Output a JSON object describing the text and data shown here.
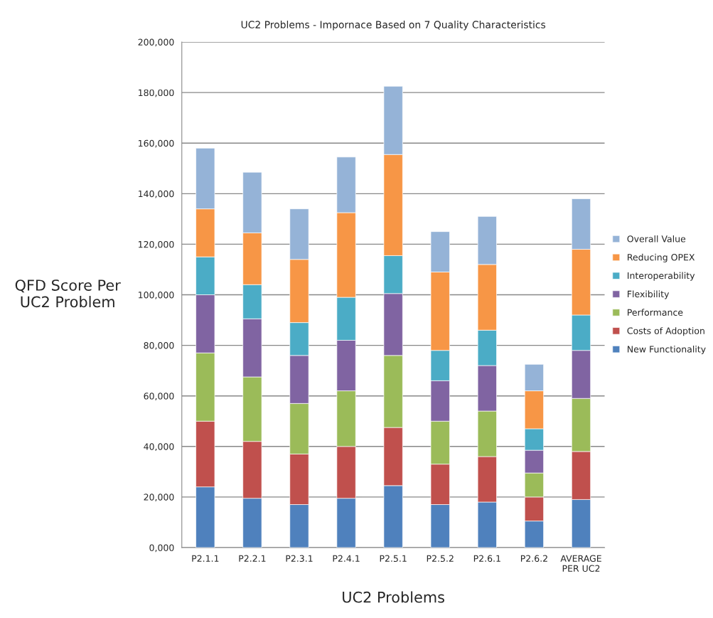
{
  "chart_data": {
    "type": "bar",
    "stacked": true,
    "title": "UC2 Problems - Impornace Based on 7 Quality Characteristics",
    "xlabel": "UC2 Problems",
    "ylabel": "QFD Score Per\nUC2 Problem",
    "categories": [
      "P2.1.1",
      "P2.2.1",
      "P2.3.1",
      "P2.4.1",
      "P2.5.1",
      "P2.5.2",
      "P2.6.1",
      "P2.6.2",
      "AVERAGE\nPER UC2"
    ],
    "series": [
      {
        "name": "New Functionality",
        "color": "#4f81bd",
        "values": [
          24000,
          19500,
          17000,
          19500,
          24500,
          17000,
          18000,
          10500,
          19000
        ]
      },
      {
        "name": "Costs of Adoption",
        "color": "#c0504d",
        "values": [
          26000,
          22500,
          20000,
          20500,
          23000,
          16000,
          18000,
          9500,
          19000
        ]
      },
      {
        "name": "Performance",
        "color": "#9bbb59",
        "values": [
          27000,
          25500,
          20000,
          22000,
          28500,
          17000,
          18000,
          9500,
          21000
        ]
      },
      {
        "name": "Flexibility",
        "color": "#8064a2",
        "values": [
          23000,
          23000,
          19000,
          20000,
          24500,
          16000,
          18000,
          9000,
          19000
        ]
      },
      {
        "name": "Interoperability",
        "color": "#4bacc6",
        "values": [
          15000,
          13500,
          13000,
          17000,
          15000,
          12000,
          14000,
          8500,
          14000
        ]
      },
      {
        "name": "Reducing OPEX",
        "color": "#f79646",
        "values": [
          19000,
          20500,
          25000,
          33500,
          40000,
          31000,
          26000,
          15000,
          26000
        ]
      },
      {
        "name": "Overall Value",
        "color": "#95b3d7",
        "values": [
          24000,
          24000,
          20000,
          22000,
          27000,
          16000,
          19000,
          10500,
          20000
        ]
      }
    ],
    "ylim": [
      0,
      200000
    ],
    "yticks": [
      {
        "value": 0,
        "label": "0,000"
      },
      {
        "value": 20000,
        "label": "20,000"
      },
      {
        "value": 40000,
        "label": "40,000"
      },
      {
        "value": 60000,
        "label": "60,000"
      },
      {
        "value": 80000,
        "label": "80,000"
      },
      {
        "value": 100000,
        "label": "100,000"
      },
      {
        "value": 120000,
        "label": "120,000"
      },
      {
        "value": 140000,
        "label": "140,000"
      },
      {
        "value": 160000,
        "label": "160,000"
      },
      {
        "value": 180000,
        "label": "180,000"
      },
      {
        "value": 200000,
        "label": "200,000"
      }
    ],
    "grid": "y",
    "legend": "right"
  }
}
